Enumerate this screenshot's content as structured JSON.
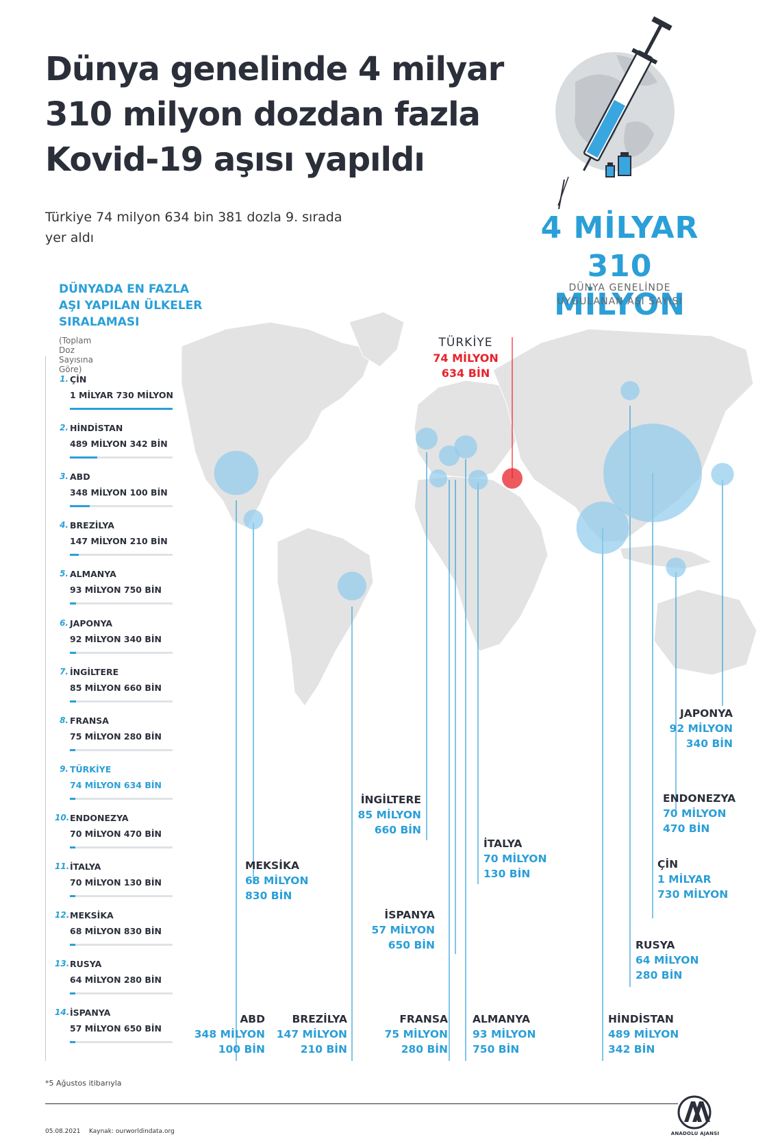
{
  "header": {
    "title_lines": [
      "Dünya genelinde 4 milyar",
      "310 milyon dozdan fazla",
      "Kovid-19 aşısı yapıldı"
    ],
    "subtitle_lines": [
      "Türkiye 74 milyon 634 bin 381 dozla 9. sırada",
      "yer aldı"
    ]
  },
  "total": {
    "value_lines": [
      "4 MİLYAR",
      "310 MİLYON"
    ],
    "caption_lines": [
      "DÜNYA GENELİNDE",
      "UYGULANAN AŞI SAYISI"
    ]
  },
  "ranking": {
    "title_lines": [
      "DÜNYADA EN FAZLA",
      "AŞI YAPILAN ÜLKELER",
      "SIRALAMASI"
    ],
    "note": "(Toplam Doz Sayısına Göre)",
    "items": [
      {
        "rank": "1.",
        "name": "ÇİN",
        "value": "1 MİLYAR 730 MİLYON"
      },
      {
        "rank": "2.",
        "name": "HİNDİSTAN",
        "value": "489 MİLYON 342 BİN"
      },
      {
        "rank": "3.",
        "name": "ABD",
        "value": "348 MİLYON 100 BİN"
      },
      {
        "rank": "4.",
        "name": "BREZİLYA",
        "value": "147 MİLYON 210 BİN"
      },
      {
        "rank": "5.",
        "name": "ALMANYA",
        "value": "93 MİLYON 750 BİN"
      },
      {
        "rank": "6.",
        "name": "JAPONYA",
        "value": "92 MİLYON 340 BİN"
      },
      {
        "rank": "7.",
        "name": "İNGİLTERE",
        "value": "85 MİLYON 660 BİN"
      },
      {
        "rank": "8.",
        "name": "FRANSA",
        "value": "75 MİLYON 280 BİN"
      },
      {
        "rank": "9.",
        "name": "TÜRKİYE",
        "value": "74 MİLYON 634 BİN"
      },
      {
        "rank": "10.",
        "name": "ENDONEZYA",
        "value": "70 MİLYON 470 BİN"
      },
      {
        "rank": "11.",
        "name": "İTALYA",
        "value": "70 MİLYON 130 BİN"
      },
      {
        "rank": "12.",
        "name": "MEKSİKA",
        "value": "68 MİLYON 830 BİN"
      },
      {
        "rank": "13.",
        "name": "RUSYA",
        "value": "64 MİLYON 280 BİN"
      },
      {
        "rank": "14.",
        "name": "İSPANYA",
        "value": "57 MİLYON 650 BİN"
      }
    ]
  },
  "map_callouts": {
    "turkey": {
      "name": "TÜRKİYE",
      "value_lines": [
        "74 MİLYON",
        "634 BİN"
      ]
    },
    "japonya": {
      "name": "JAPONYA",
      "value_lines": [
        "92 MİLYON",
        "340 BİN"
      ]
    },
    "endonezya": {
      "name": "ENDONEZYA",
      "value_lines": [
        "70 MİLYON",
        "470 BİN"
      ]
    },
    "cin": {
      "name": "ÇİN",
      "value_lines": [
        "1 MİLYAR",
        "730 MİLYON"
      ]
    },
    "rusya": {
      "name": "RUSYA",
      "value_lines": [
        "64 MİLYON",
        "280 BİN"
      ]
    },
    "hindistan": {
      "name": "HİNDİSTAN",
      "value_lines": [
        "489 MİLYON",
        "342 BİN"
      ]
    },
    "ingiltere": {
      "name": "İNGİLTERE",
      "value_lines": [
        "85 MİLYON",
        "660 BİN"
      ]
    },
    "italya": {
      "name": "İTALYA",
      "value_lines": [
        "70 MİLYON",
        "130 BİN"
      ]
    },
    "ispanya": {
      "name": "İSPANYA",
      "value_lines": [
        "57 MİLYON",
        "650 BİN"
      ]
    },
    "meksika": {
      "name": "MEKSİKA",
      "value_lines": [
        "68 MİLYON",
        "830 BİN"
      ]
    },
    "abd": {
      "name": "ABD",
      "value_lines": [
        "348 MİLYON",
        "100 BİN"
      ]
    },
    "brezilya": {
      "name": "BREZİLYA",
      "value_lines": [
        "147 MİLYON",
        "210 BİN"
      ]
    },
    "fransa": {
      "name": "FRANSA",
      "value_lines": [
        "75 MİLYON",
        "280 BİN"
      ]
    },
    "almanya": {
      "name": "ALMANYA",
      "value_lines": [
        "93 MİLYON",
        "750 BİN"
      ]
    }
  },
  "footer": {
    "note": "*5 Ağustos itibarıyla",
    "date": "05.08.2021",
    "source": "Kaynak: ourworldindata.org",
    "logo_text": "ANADOLU AJANSI"
  },
  "colors": {
    "accent": "#2a9fd8",
    "highlight": "#e8222b",
    "land": "#e3e3e3",
    "bubble": "#8fcbec"
  },
  "chart_data": {
    "type": "bubble-map",
    "unit": "doz",
    "total_doses_millions": 4310,
    "series": [
      {
        "country": "ÇİN",
        "doses_millions": 1730
      },
      {
        "country": "HİNDİSTAN",
        "doses_millions": 489.342
      },
      {
        "country": "ABD",
        "doses_millions": 348.1
      },
      {
        "country": "BREZİLYA",
        "doses_millions": 147.21
      },
      {
        "country": "ALMANYA",
        "doses_millions": 93.75
      },
      {
        "country": "JAPONYA",
        "doses_millions": 92.34
      },
      {
        "country": "İNGİLTERE",
        "doses_millions": 85.66
      },
      {
        "country": "FRANSA",
        "doses_millions": 75.28
      },
      {
        "country": "TÜRKİYE",
        "doses_millions": 74.634
      },
      {
        "country": "ENDONEZYA",
        "doses_millions": 70.47
      },
      {
        "country": "İTALYA",
        "doses_millions": 70.13
      },
      {
        "country": "MEKSİKA",
        "doses_millions": 68.83
      },
      {
        "country": "RUSYA",
        "doses_millions": 64.28
      },
      {
        "country": "İSPANYA",
        "doses_millions": 57.65
      }
    ]
  }
}
